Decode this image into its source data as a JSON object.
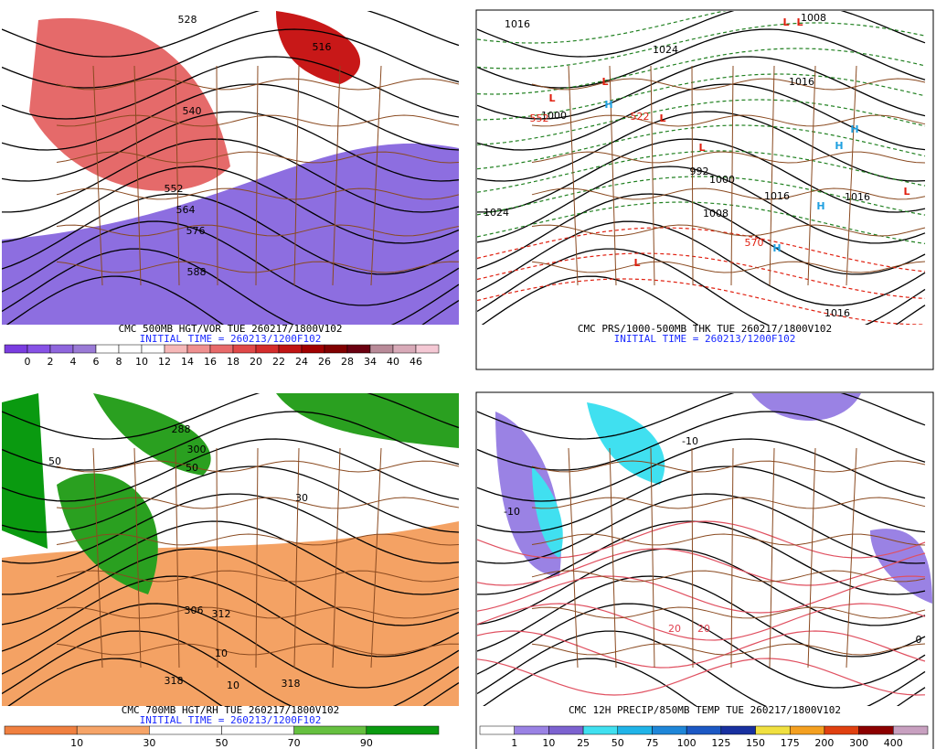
{
  "panels": [
    {
      "caption": "CMC 500MB HGT/VOR TUE 260217/1800V102",
      "initial_time": "INITIAL TIME = 260213/1200F102",
      "colorbar": {
        "labels": [
          0,
          2,
          4,
          6,
          8,
          10,
          12,
          14,
          16,
          18,
          20,
          22,
          24,
          26,
          28,
          34,
          40,
          46
        ],
        "colors": [
          "#7a3de0",
          "#8752e6",
          "#8f66dd",
          "#9a7ad6",
          "#ffffff",
          "#ffffff",
          "#ffffff",
          "#f6b8b8",
          "#ef9090",
          "#e86a6a",
          "#e04848",
          "#d42c2c",
          "#c01414",
          "#a00000",
          "#800000",
          "#6a0010",
          "#b88a98",
          "#d8aab8",
          "#f4c8d4"
        ]
      },
      "labels": [
        "528",
        "516",
        "540",
        "552",
        "564",
        "576",
        "588"
      ]
    },
    {
      "caption": "CMC PRS/1000-500MB THK TUE 260217/1800V102",
      "initial_time": "INITIAL TIME = 260213/1200F102",
      "labels": [
        "L",
        "L",
        "L",
        "L",
        "L",
        "L",
        "L",
        "L",
        "H",
        "H",
        "H",
        "H",
        "H",
        "1016",
        "1008",
        "1024",
        "1000",
        "1024",
        "992",
        "1000",
        "1016",
        "1008",
        "1016",
        "1016",
        "1016",
        "570",
        "552",
        "522"
      ]
    },
    {
      "caption": "CMC 700MB HGT/RH TUE 260217/1800V102",
      "initial_time": "INITIAL TIME = 260213/1200F102",
      "colorbar": {
        "labels": [
          10,
          30,
          50,
          70,
          90
        ],
        "colors": [
          "#f08040",
          "#f6a468",
          "#ffffff",
          "#ffffff",
          "#66c040",
          "#0a9a10"
        ]
      },
      "labels": [
        "288",
        "300",
        "306",
        "312",
        "318",
        "318",
        "50",
        "50",
        "10",
        "10",
        "30"
      ]
    },
    {
      "caption": "CMC 12H PRECIP/850MB TEMP TUE 260217/1800V102",
      "colorbar": {
        "labels": [
          1,
          10,
          25,
          50,
          75,
          100,
          125,
          150,
          175,
          200,
          300,
          400
        ],
        "colors": [
          "#ffffff",
          "#9a82e4",
          "#7c62d0",
          "#40e0f0",
          "#20b4e8",
          "#1e86d8",
          "#1c58c4",
          "#1830a0",
          "#f0e040",
          "#f4a020",
          "#e04010",
          "#8c0000",
          "#c8a0c0"
        ]
      },
      "labels": [
        "-10",
        "20",
        "20",
        "0",
        "-10"
      ]
    }
  ]
}
